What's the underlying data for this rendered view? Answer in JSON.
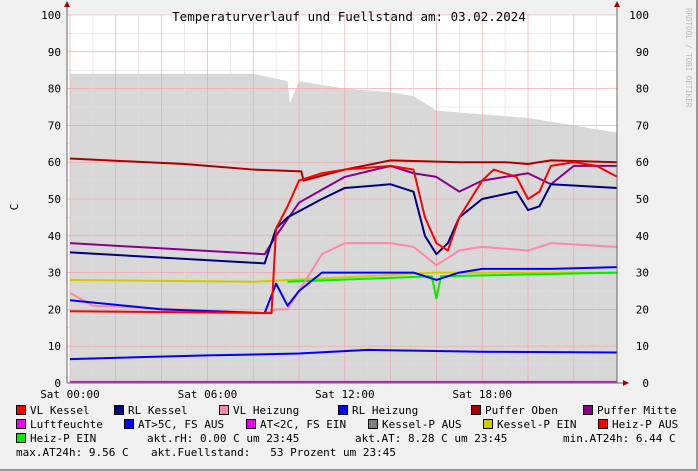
{
  "chart_data": {
    "type": "line",
    "title": "Temperaturverlauf und Fuellstand am: 03.02.2024",
    "ylabel": "C",
    "ylim": [
      0,
      100
    ],
    "yticks": [
      0,
      10,
      20,
      30,
      40,
      50,
      60,
      70,
      80,
      90,
      100
    ],
    "xlim_hours": [
      0,
      24
    ],
    "xticks": [
      {
        "h": 0,
        "label": "Sat 00:00"
      },
      {
        "h": 6,
        "label": "Sat 06:00"
      },
      {
        "h": 12,
        "label": "Sat 12:00"
      },
      {
        "h": 18,
        "label": "Sat 18:00"
      }
    ],
    "watermark": "RRDTOOL / TOBI OETIKER",
    "area": {
      "name": "Kessel-P AUS",
      "color": "#d8d8d8",
      "points": [
        [
          0,
          84
        ],
        [
          5,
          84
        ],
        [
          8,
          84
        ],
        [
          9.5,
          82
        ],
        [
          9.6,
          76
        ],
        [
          10,
          82
        ],
        [
          12,
          80
        ],
        [
          14,
          79
        ],
        [
          15,
          78
        ],
        [
          16,
          74
        ],
        [
          18,
          73
        ],
        [
          20,
          72
        ],
        [
          22,
          70
        ],
        [
          23.9,
          68
        ]
      ]
    },
    "series": [
      {
        "name": "Kessel-P EIN",
        "color": "#cccc00",
        "points": [
          [
            0,
            28
          ],
          [
            8,
            27.5
          ],
          [
            16,
            30
          ],
          [
            23.9,
            30
          ]
        ]
      },
      {
        "name": "Heiz-P EIN",
        "color": "#00ee00",
        "points": [
          [
            9.5,
            27.5
          ],
          [
            15.8,
            29
          ],
          [
            16,
            23
          ],
          [
            16.2,
            29
          ],
          [
            23.9,
            30
          ]
        ]
      },
      {
        "name": "Luftfeuchte",
        "color": "#ee00ee",
        "points": [
          [
            0,
            0.3
          ],
          [
            23.9,
            0.3
          ]
        ]
      },
      {
        "name": "AT>5C, FS AUS",
        "color": "#0000ff",
        "points": [
          [
            0,
            6.5
          ],
          [
            6,
            7.5
          ],
          [
            10,
            8
          ],
          [
            13,
            9
          ],
          [
            18,
            8.5
          ],
          [
            23.9,
            8.3
          ]
        ]
      },
      {
        "name": "VL Heizung",
        "color": "#ff88aa",
        "points": [
          [
            0,
            24.5
          ],
          [
            1,
            21
          ],
          [
            8.5,
            19
          ],
          [
            9,
            20
          ],
          [
            9.5,
            20
          ],
          [
            10,
            25
          ],
          [
            11,
            35
          ],
          [
            12,
            38
          ],
          [
            14,
            38
          ],
          [
            15,
            37
          ],
          [
            16,
            32
          ],
          [
            17,
            36
          ],
          [
            18,
            37
          ],
          [
            20,
            36
          ],
          [
            21,
            38
          ],
          [
            23.9,
            37
          ]
        ]
      },
      {
        "name": "RL Heizung",
        "color": "#0000ff",
        "points": [
          [
            0,
            22.5
          ],
          [
            4,
            20
          ],
          [
            8.5,
            19
          ],
          [
            9,
            27
          ],
          [
            9.5,
            21
          ],
          [
            10,
            25
          ],
          [
            11,
            30
          ],
          [
            14,
            30
          ],
          [
            15,
            30
          ],
          [
            16,
            28
          ],
          [
            17,
            30
          ],
          [
            18,
            31
          ],
          [
            20,
            31
          ],
          [
            21,
            31
          ],
          [
            23.9,
            31.5
          ]
        ]
      },
      {
        "name": "Puffer Oben",
        "color": "#aa0000",
        "points": [
          [
            0,
            61
          ],
          [
            5,
            59.5
          ],
          [
            8,
            58
          ],
          [
            10.1,
            57.5
          ],
          [
            10.2,
            55
          ],
          [
            12,
            58
          ],
          [
            14,
            60.5
          ],
          [
            17,
            60
          ],
          [
            19,
            60
          ],
          [
            20,
            59.5
          ],
          [
            21,
            60.5
          ],
          [
            23.9,
            60
          ]
        ]
      },
      {
        "name": "Puffer Mitte",
        "color": "#880088",
        "points": [
          [
            0,
            38
          ],
          [
            8.5,
            35
          ],
          [
            9,
            40
          ],
          [
            10,
            49
          ],
          [
            12,
            56
          ],
          [
            14,
            59
          ],
          [
            15,
            57
          ],
          [
            16,
            56
          ],
          [
            17,
            52
          ],
          [
            18,
            55
          ],
          [
            20,
            57
          ],
          [
            21,
            54
          ],
          [
            22,
            59
          ],
          [
            23.9,
            59
          ]
        ]
      },
      {
        "name": "RL Kessel",
        "color": "#000080",
        "points": [
          [
            0,
            35.5
          ],
          [
            8.5,
            32.5
          ],
          [
            9,
            42
          ],
          [
            9.5,
            45
          ],
          [
            11,
            50
          ],
          [
            12,
            53
          ],
          [
            14,
            54
          ],
          [
            15,
            52
          ],
          [
            15.5,
            40
          ],
          [
            16,
            35
          ],
          [
            16.5,
            38
          ],
          [
            17,
            45
          ],
          [
            18,
            50
          ],
          [
            19.5,
            52
          ],
          [
            20,
            47
          ],
          [
            20.5,
            48
          ],
          [
            21,
            54
          ],
          [
            23.9,
            53
          ]
        ]
      },
      {
        "name": "VL Kessel",
        "color": "#ff0000",
        "points": [
          [
            0,
            19.5
          ],
          [
            8.8,
            19
          ],
          [
            9,
            42
          ],
          [
            9.5,
            48
          ],
          [
            10,
            55
          ],
          [
            11,
            57
          ],
          [
            12,
            58
          ],
          [
            14,
            59
          ],
          [
            15,
            58
          ],
          [
            15.5,
            45
          ],
          [
            16,
            38
          ],
          [
            16.5,
            36
          ],
          [
            17,
            45
          ],
          [
            18,
            55
          ],
          [
            18.5,
            58
          ],
          [
            19.5,
            56
          ],
          [
            20,
            50
          ],
          [
            20.5,
            52
          ],
          [
            21,
            59
          ],
          [
            22,
            60
          ],
          [
            23,
            59
          ],
          [
            23.9,
            56
          ]
        ]
      }
    ]
  },
  "legend": [
    {
      "label": "VL Kessel",
      "color": "#ff0000"
    },
    {
      "label": "RL Kessel",
      "color": "#000080"
    },
    {
      "label": "VL Heizung",
      "color": "#ff88aa"
    },
    {
      "label": "RL Heizung",
      "color": "#0000ff"
    },
    {
      "label": "Puffer Oben",
      "color": "#aa0000"
    },
    {
      "label": "Puffer Mitte",
      "color": "#880088"
    },
    {
      "label": "Luftfeuchte",
      "color": "#ee00ee"
    },
    {
      "label": "AT>5C, FS AUS",
      "color": "#0000ff"
    },
    {
      "label": "AT<2C, FS EIN",
      "color": "#ee00ee"
    },
    {
      "label": "Kessel-P AUS",
      "color": "#808080"
    },
    {
      "label": "Kessel-P EIN",
      "color": "#cccc00"
    },
    {
      "label": "Heiz-P AUS",
      "color": "#ff0000"
    },
    {
      "label": "Heiz-P EIN",
      "color": "#00ee00"
    }
  ],
  "stats": {
    "rh": "akt.rH: 0.00 C um 23:45",
    "at": "akt.AT: 8.28 C um 23:45",
    "min": "min.AT24h: 6.44 C",
    "max": "max.AT24h: 9.56 C",
    "fuell": "akt.Fuellstand:   53 Prozent um 23:45"
  }
}
